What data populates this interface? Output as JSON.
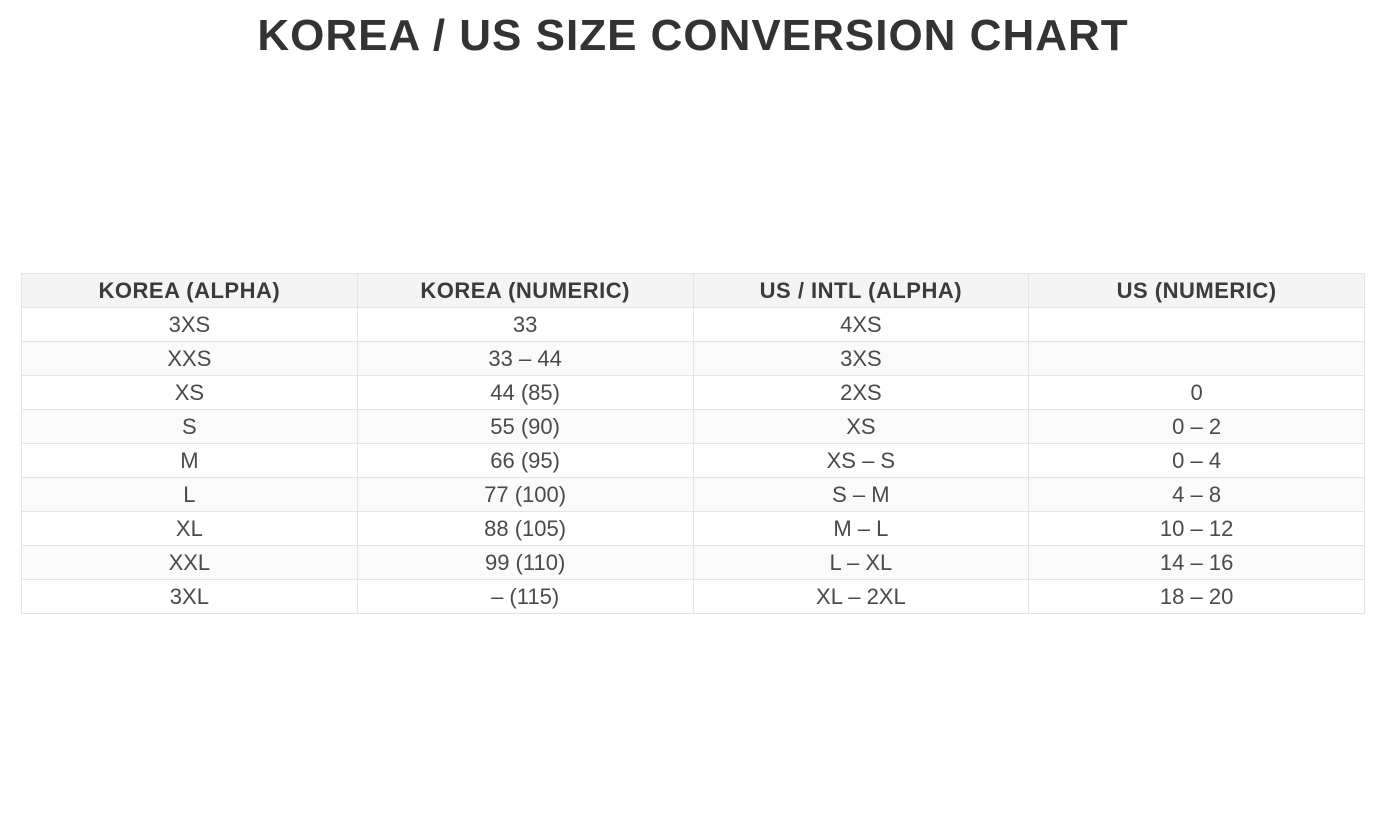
{
  "page": {
    "title": "KOREA / US SIZE CONVERSION CHART"
  },
  "chart_data": {
    "type": "table",
    "title": "KOREA / US SIZE CONVERSION CHART",
    "columns": [
      "KOREA (ALPHA)",
      "KOREA (NUMERIC)",
      "US / INTL (ALPHA)",
      "US (NUMERIC)"
    ],
    "rows": [
      [
        "3XS",
        "33",
        "4XS",
        ""
      ],
      [
        "XXS",
        "33 – 44",
        "3XS",
        ""
      ],
      [
        "XS",
        "44 (85)",
        "2XS",
        "0"
      ],
      [
        "S",
        "55 (90)",
        "XS",
        "0 – 2"
      ],
      [
        "M",
        "66 (95)",
        "XS – S",
        "0 – 4"
      ],
      [
        "L",
        "77 (100)",
        "S – M",
        "4 – 8"
      ],
      [
        "XL",
        "88 (105)",
        "M – L",
        "10 – 12"
      ],
      [
        "XXL",
        "99 (110)",
        "L – XL",
        "14 – 16"
      ],
      [
        "3XL",
        "– (115)",
        "XL – 2XL",
        "18 – 20"
      ]
    ],
    "layout": {
      "grid": "full-borders",
      "striped_rows": true,
      "text_align": "center"
    }
  },
  "colors": {
    "page_bg": "#ffffff",
    "title_text": "#333333",
    "header_bg": "#f4f4f4",
    "header_text": "#3b3b3b",
    "body_text": "#4a4a4a",
    "row_stripe_bg": "#fafafa",
    "border": "#e4e4e4"
  }
}
